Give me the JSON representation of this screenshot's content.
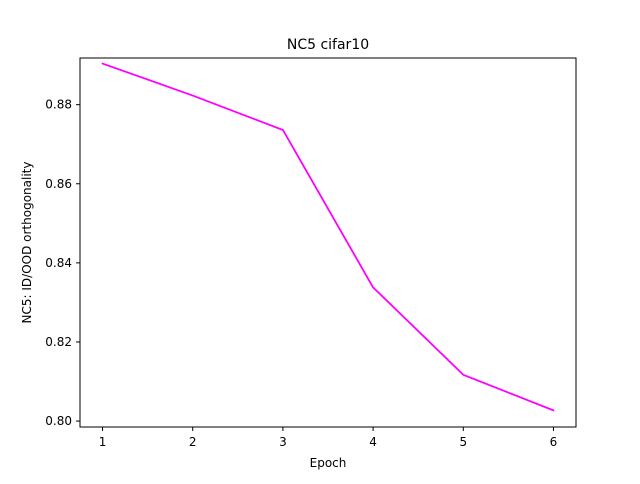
{
  "chart_data": {
    "type": "line",
    "title": "NC5 cifar10",
    "xlabel": "Epoch",
    "ylabel": "NC5: ID/OOD orthogonality",
    "xlim": [
      0.75,
      6.25
    ],
    "ylim": [
      0.7985,
      0.8918
    ],
    "xticks": [
      1,
      2,
      3,
      4,
      5,
      6
    ],
    "xtick_labels": [
      "1",
      "2",
      "3",
      "4",
      "5",
      "6"
    ],
    "yticks": [
      0.8,
      0.82,
      0.84,
      0.86,
      0.88
    ],
    "ytick_labels": [
      "0.80",
      "0.82",
      "0.84",
      "0.86",
      "0.88"
    ],
    "grid": false,
    "series": [
      {
        "color": "#ff00ff",
        "x": [
          1,
          2,
          3,
          4,
          5,
          6
        ],
        "values": [
          0.8904,
          0.8823,
          0.8736,
          0.8338,
          0.8117,
          0.8027
        ]
      }
    ]
  }
}
